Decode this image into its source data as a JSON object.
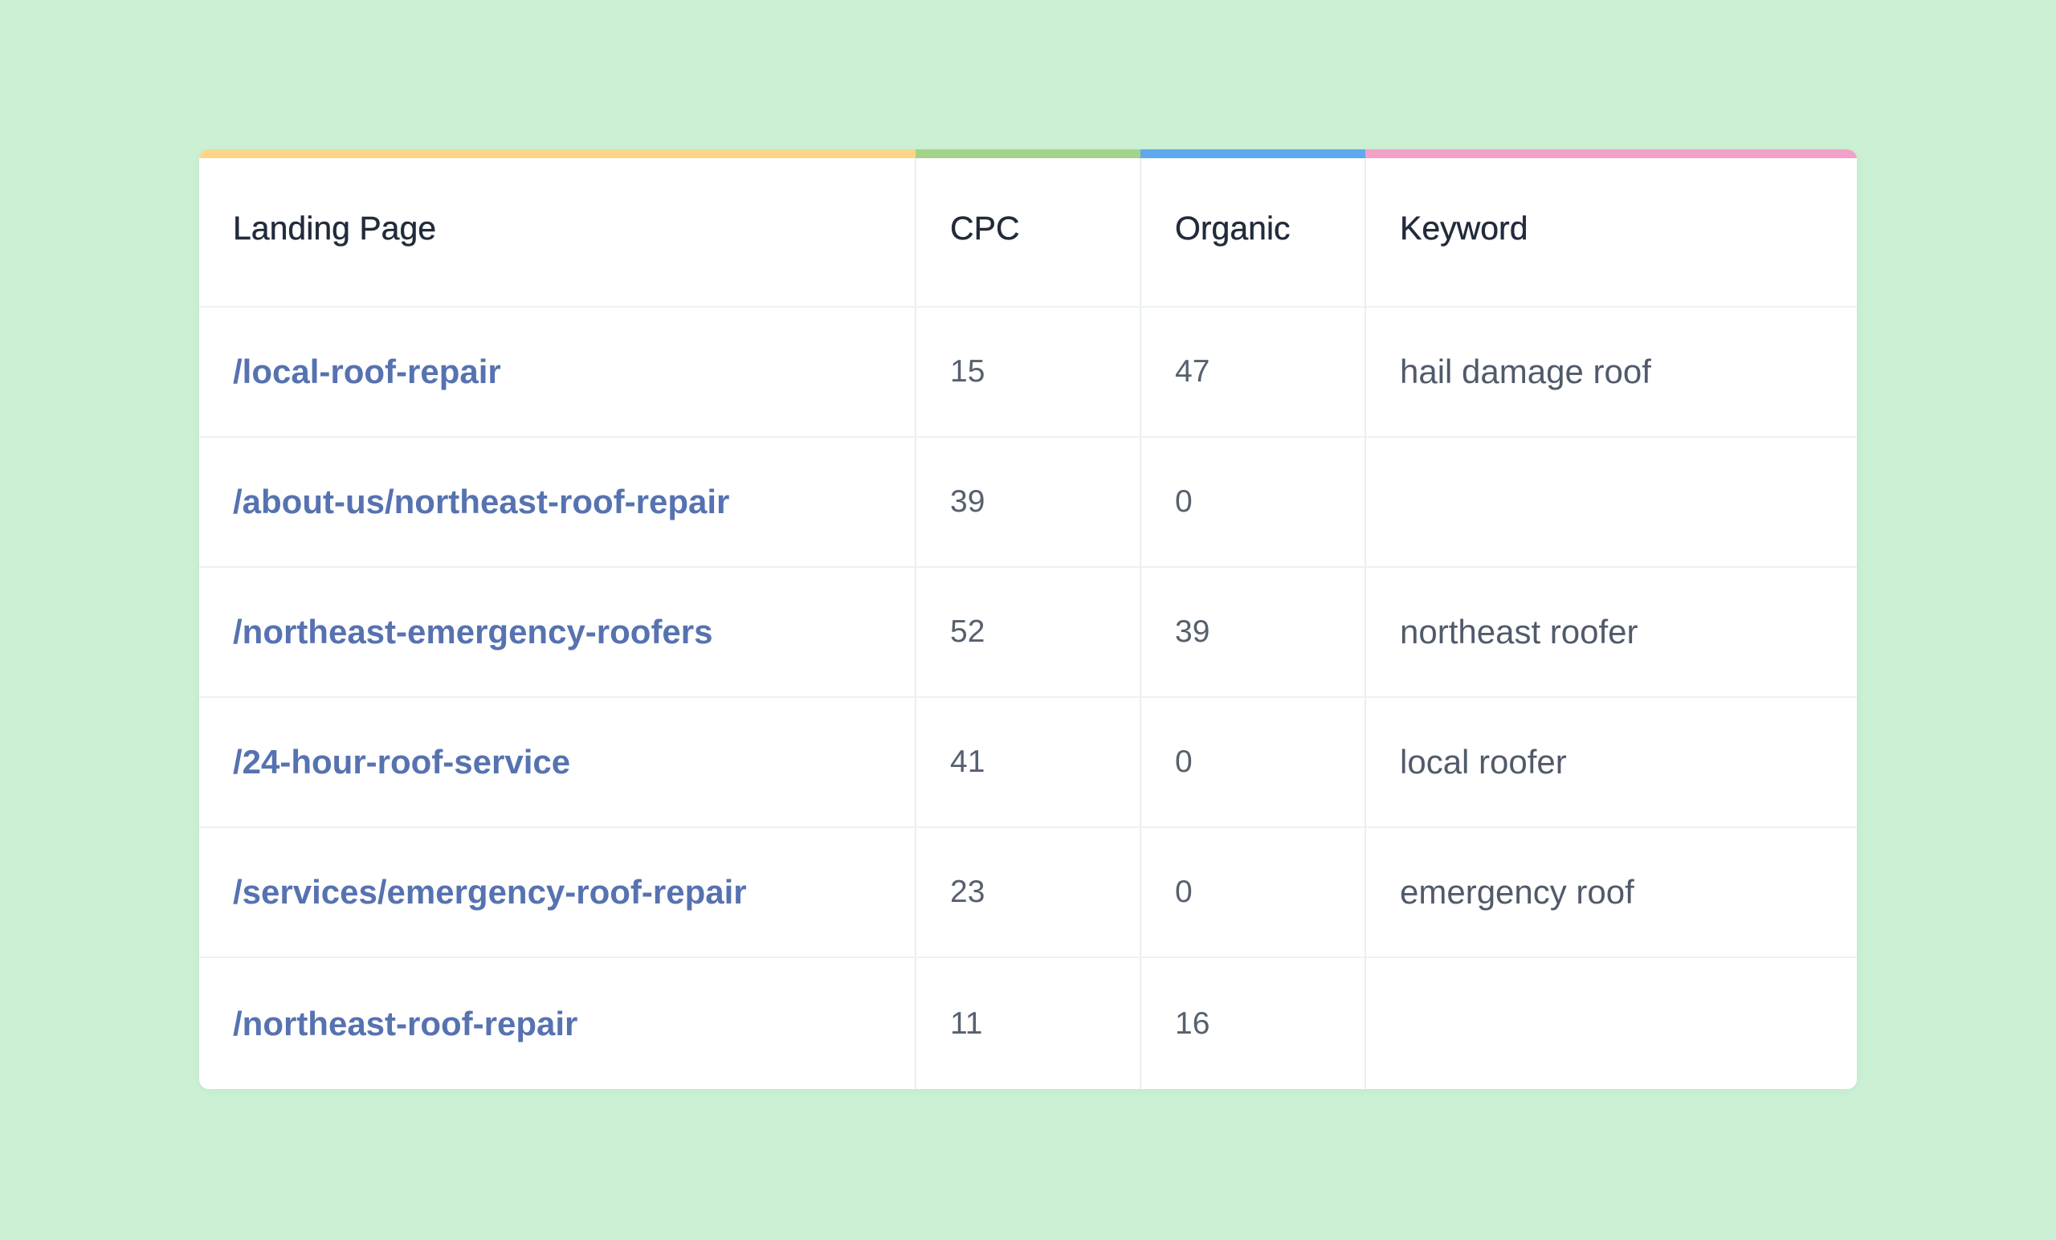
{
  "accent_colors": [
    "#fad58a",
    "#a3d389",
    "#5ea8ee",
    "#f2a2c8"
  ],
  "table": {
    "headers": [
      "Landing Page",
      "CPC",
      "Organic",
      "Keyword"
    ],
    "rows": [
      {
        "landing_page": "/local-roof-repair",
        "cpc": "15",
        "organic": "47",
        "keyword": "hail damage roof"
      },
      {
        "landing_page": "/about-us/northeast-roof-repair",
        "cpc": "39",
        "organic": "0",
        "keyword": ""
      },
      {
        "landing_page": "/northeast-emergency-roofers",
        "cpc": "52",
        "organic": "39",
        "keyword": "northeast roofer"
      },
      {
        "landing_page": "/24-hour-roof-service",
        "cpc": "41",
        "organic": "0",
        "keyword": "local roofer"
      },
      {
        "landing_page": "/services/emergency-roof-repair",
        "cpc": "23",
        "organic": "0",
        "keyword": "emergency roof"
      },
      {
        "landing_page": "/northeast-roof-repair",
        "cpc": "11",
        "organic": "16",
        "keyword": ""
      }
    ]
  }
}
